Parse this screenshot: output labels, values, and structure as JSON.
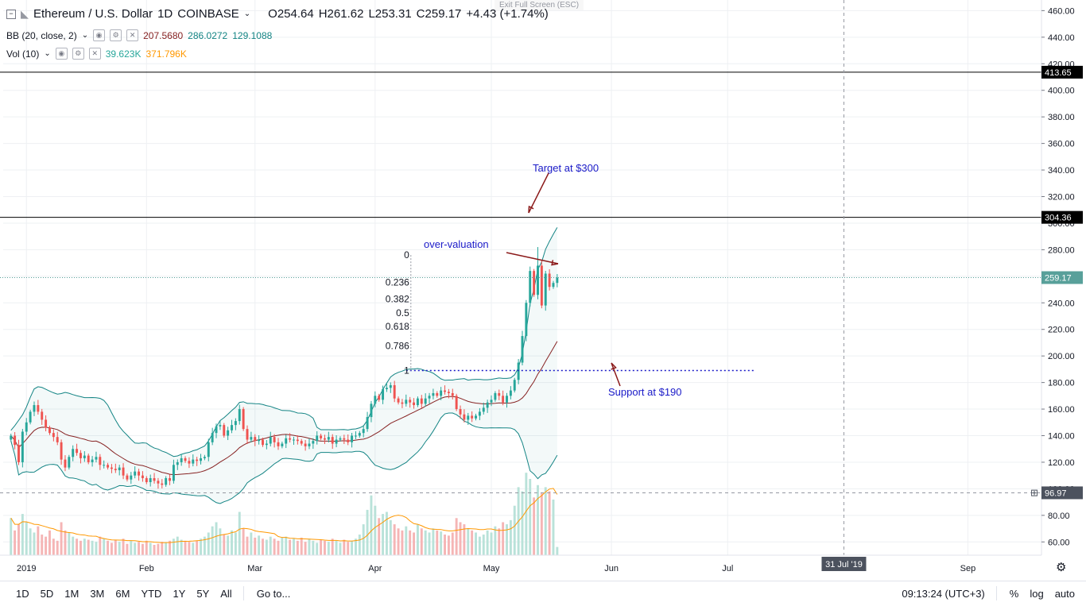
{
  "window": {
    "exit_fullscreen": "Exit Full Screen (ESC)"
  },
  "header": {
    "symbol": "Ethereum / U.S. Dollar",
    "interval": "1D",
    "exchange": "COINBASE",
    "open_label": "O254.64",
    "high_label": "H261.62",
    "low_label": "L253.31",
    "close_label": "C259.17",
    "change_label": "+4.43 (+1.74%)",
    "bb_label": "BB (20, close, 2)",
    "bb_basis": "207.5680",
    "bb_upper": "286.0272",
    "bb_lower": "129.1088",
    "vol_label": "Vol (10)",
    "vol_value": "39.623K",
    "vol_ma": "371.796K"
  },
  "price_tags": {
    "resistance_high": "413.65",
    "resistance_target": "304.36",
    "last_price": "259.17",
    "crosshair_price": "96.97"
  },
  "annotations": {
    "target": "Target at $300",
    "overvaluation": "over-valuation",
    "support": "Support at $190",
    "fib_levels": [
      "0",
      "0.236",
      "0.382",
      "0.5",
      "0.618",
      "0.786",
      "1"
    ]
  },
  "crosshair_date": "31 Jul '19",
  "bottom_bar": {
    "ranges": [
      "1D",
      "5D",
      "1M",
      "3M",
      "6M",
      "YTD",
      "1Y",
      "5Y",
      "All"
    ],
    "goto": "Go to...",
    "time": "09:13:24 (UTC+3)",
    "percent": "%",
    "log": "log",
    "auto": "auto"
  },
  "colors": {
    "up": "#26a69a",
    "down": "#ef5350",
    "bb_band": "#138484",
    "bb_basis": "#872323",
    "annotation": "#1a1ac8",
    "arrow": "#8b1a1a",
    "last_price_tag": "#58a09a"
  },
  "chart_data": {
    "type": "candlestick",
    "y_axis_ticks": [
      60,
      80,
      100,
      120,
      140,
      160,
      180,
      200,
      220,
      240,
      260,
      280,
      300,
      320,
      340,
      360,
      380,
      400,
      420,
      440,
      460
    ],
    "y_axis_tick_labels": [
      "60.00",
      "80.00",
      "100.00",
      "120.00",
      "140.00",
      "160.00",
      "180.00",
      "200.00",
      "220.00",
      "240.00",
      "260.00",
      "280.00",
      "300.00",
      "320.00",
      "340.00",
      "360.00",
      "380.00",
      "400.00",
      "420.00",
      "440.00",
      "460.00"
    ],
    "ylim": [
      50,
      468
    ],
    "x_axis_labels": [
      "2019",
      "Feb",
      "Mar",
      "Apr",
      "May",
      "Jun",
      "Jul",
      "Sep"
    ],
    "x_axis_label_days": [
      0,
      31,
      59,
      90,
      120,
      151,
      181,
      243
    ],
    "xlim_days": [
      -6,
      262
    ],
    "horizontal_lines": [
      413.65,
      304.36
    ],
    "support_level": 189,
    "fib_anchor_days": [
      98,
      168
    ],
    "close": [
      140,
      133,
      120,
      143,
      150,
      158,
      163,
      158,
      152,
      146,
      142,
      139,
      135,
      122,
      116,
      124,
      130,
      127,
      123,
      125,
      120,
      122,
      124,
      118,
      118,
      116,
      115,
      114,
      116,
      110,
      107,
      110,
      113,
      110,
      108,
      105,
      108,
      106,
      104,
      103,
      108,
      106,
      118,
      120,
      123,
      121,
      119,
      122,
      121,
      123,
      124,
      135,
      142,
      147,
      148,
      140,
      144,
      148,
      151,
      160,
      145,
      137,
      139,
      136,
      137,
      133,
      134,
      139,
      135,
      132,
      134,
      138,
      137,
      137,
      136,
      134,
      132,
      134,
      136,
      140,
      138,
      137,
      139,
      134,
      137,
      138,
      137,
      135,
      140,
      140,
      142,
      145,
      154,
      164,
      170,
      167,
      175,
      176,
      178,
      168,
      165,
      164,
      167,
      165,
      163,
      168,
      164,
      168,
      170,
      172,
      170,
      174,
      173,
      172,
      170,
      160,
      156,
      152,
      155,
      153,
      155,
      158,
      161,
      165,
      167,
      172,
      170,
      165,
      170,
      174,
      182,
      195,
      215,
      240,
      264,
      246,
      268,
      238,
      262,
      252,
      255,
      259
    ],
    "volume_k_approx": [
      180,
      120,
      150,
      200,
      160,
      130,
      110,
      140,
      100,
      90,
      120,
      80,
      70,
      160,
      120,
      110,
      90,
      80,
      70,
      80,
      75,
      70,
      65,
      90,
      80,
      70,
      60,
      75,
      65,
      80,
      55,
      70,
      60,
      65,
      55,
      70,
      60,
      50,
      55,
      65,
      60,
      70,
      80,
      90,
      75,
      70,
      65,
      60,
      70,
      80,
      90,
      110,
      140,
      160,
      130,
      100,
      95,
      120,
      110,
      210,
      130,
      90,
      110,
      85,
      95,
      80,
      75,
      90,
      80,
      70,
      85,
      90,
      75,
      80,
      70,
      85,
      65,
      80,
      70,
      60,
      75,
      70,
      65,
      80,
      70,
      60,
      75,
      65,
      70,
      80,
      100,
      150,
      220,
      290,
      240,
      180,
      200,
      210,
      170,
      150,
      130,
      120,
      140,
      120,
      110,
      150,
      130,
      120,
      110,
      130,
      120,
      115,
      100,
      95,
      110,
      180,
      160,
      150,
      130,
      120,
      110,
      90,
      100,
      120,
      110,
      140,
      130,
      160,
      150,
      170,
      240,
      330,
      310,
      400,
      370,
      280,
      340,
      300,
      330,
      310,
      270,
      40
    ]
  }
}
